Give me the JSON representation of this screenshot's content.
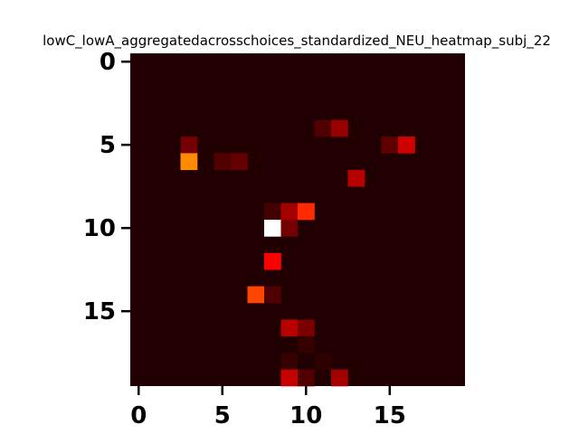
{
  "chart_data": {
    "type": "heatmap",
    "title": "lowC_lowA_aggregatedacrosschoices_standardized_NEU_heatmap_subj_22",
    "xlabel": "",
    "ylabel": "",
    "n_rows": 20,
    "n_cols": 20,
    "xlim": [
      -0.5,
      19.5
    ],
    "ylim": [
      19.5,
      -0.5
    ],
    "x_ticks": [
      0,
      5,
      10,
      15
    ],
    "y_ticks": [
      0,
      5,
      10,
      15
    ],
    "grid": false,
    "legend": "none",
    "colormap": "hot",
    "value_range": [
      0,
      1
    ],
    "background_value": 0.03,
    "cells": [
      {
        "row": 4,
        "col": 11,
        "value": 0.1
      },
      {
        "row": 4,
        "col": 12,
        "value": 0.2
      },
      {
        "row": 5,
        "col": 3,
        "value": 0.15
      },
      {
        "row": 5,
        "col": 15,
        "value": 0.12
      },
      {
        "row": 5,
        "col": 16,
        "value": 0.28
      },
      {
        "row": 6,
        "col": 3,
        "value": 0.57
      },
      {
        "row": 6,
        "col": 5,
        "value": 0.1
      },
      {
        "row": 6,
        "col": 6,
        "value": 0.13
      },
      {
        "row": 7,
        "col": 13,
        "value": 0.25
      },
      {
        "row": 9,
        "col": 8,
        "value": 0.08
      },
      {
        "row": 9,
        "col": 9,
        "value": 0.22
      },
      {
        "row": 9,
        "col": 10,
        "value": 0.43
      },
      {
        "row": 10,
        "col": 8,
        "value": 1.0
      },
      {
        "row": 10,
        "col": 9,
        "value": 0.15
      },
      {
        "row": 12,
        "col": 8,
        "value": 0.35
      },
      {
        "row": 14,
        "col": 7,
        "value": 0.47
      },
      {
        "row": 14,
        "col": 8,
        "value": 0.1
      },
      {
        "row": 16,
        "col": 9,
        "value": 0.25
      },
      {
        "row": 16,
        "col": 10,
        "value": 0.16
      },
      {
        "row": 17,
        "col": 10,
        "value": 0.06
      },
      {
        "row": 18,
        "col": 9,
        "value": 0.06
      },
      {
        "row": 18,
        "col": 11,
        "value": 0.05
      },
      {
        "row": 19,
        "col": 9,
        "value": 0.27
      },
      {
        "row": 19,
        "col": 10,
        "value": 0.1
      },
      {
        "row": 19,
        "col": 12,
        "value": 0.22
      }
    ]
  }
}
